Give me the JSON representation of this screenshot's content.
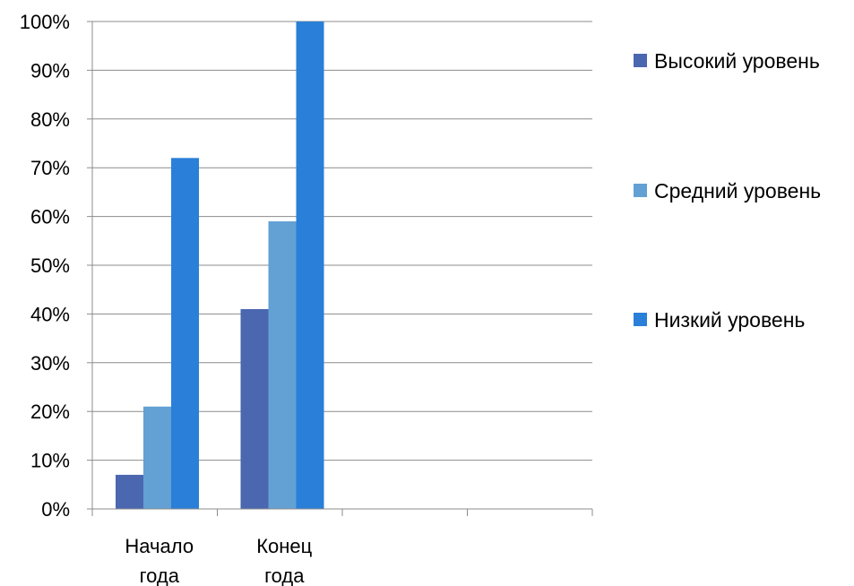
{
  "chart_data": {
    "type": "bar",
    "categories": [
      [
        "Начало",
        "года"
      ],
      [
        "Конец",
        "года"
      ],
      [],
      []
    ],
    "series": [
      {
        "name": "Высокий уровень",
        "color": "#4a67b0",
        "values": [
          7,
          41,
          null,
          null
        ]
      },
      {
        "name": "Средний уровень",
        "color": "#63a0d4",
        "values": [
          21,
          59,
          null,
          null
        ]
      },
      {
        "name": "Низкий уровень",
        "color": "#2a7fd8",
        "values": [
          72,
          100,
          null,
          null
        ]
      }
    ],
    "yticks": [
      "0%",
      "10%",
      "20%",
      "30%",
      "40%",
      "50%",
      "60%",
      "70%",
      "80%",
      "90%",
      "100%"
    ],
    "ylim": [
      0,
      100
    ],
    "grid": true,
    "legend_position": "right"
  }
}
